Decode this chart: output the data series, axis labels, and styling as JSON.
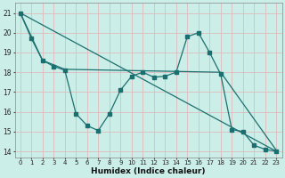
{
  "xlabel": "Humidex (Indice chaleur)",
  "background_color": "#cceee8",
  "grid_color": "#e8e8e8",
  "line_color": "#1a7070",
  "xlim": [
    -0.5,
    23.5
  ],
  "ylim": [
    13.7,
    21.5
  ],
  "yticks": [
    14,
    15,
    16,
    17,
    18,
    19,
    20,
    21
  ],
  "xticks": [
    0,
    1,
    2,
    3,
    4,
    5,
    6,
    7,
    8,
    9,
    10,
    11,
    12,
    13,
    14,
    15,
    16,
    17,
    18,
    19,
    20,
    21,
    22,
    23
  ],
  "line1_x": [
    0,
    1,
    2,
    3,
    4,
    5,
    6,
    7,
    8,
    9,
    10,
    11,
    12,
    13,
    14,
    15,
    16,
    17,
    18,
    19,
    20,
    21,
    22,
    23
  ],
  "line1_y": [
    21.0,
    19.7,
    18.6,
    18.3,
    18.1,
    15.9,
    15.3,
    15.05,
    15.9,
    17.1,
    17.8,
    18.0,
    17.75,
    17.8,
    18.0,
    19.8,
    20.0,
    19.0,
    17.9,
    15.1,
    15.0,
    14.3,
    14.1,
    14.0
  ],
  "line2_x": [
    0,
    23
  ],
  "line2_y": [
    21.0,
    14.0
  ],
  "line3_x": [
    0,
    2,
    4,
    18,
    23
  ],
  "line3_y": [
    21.0,
    18.6,
    18.15,
    18.0,
    14.05
  ]
}
